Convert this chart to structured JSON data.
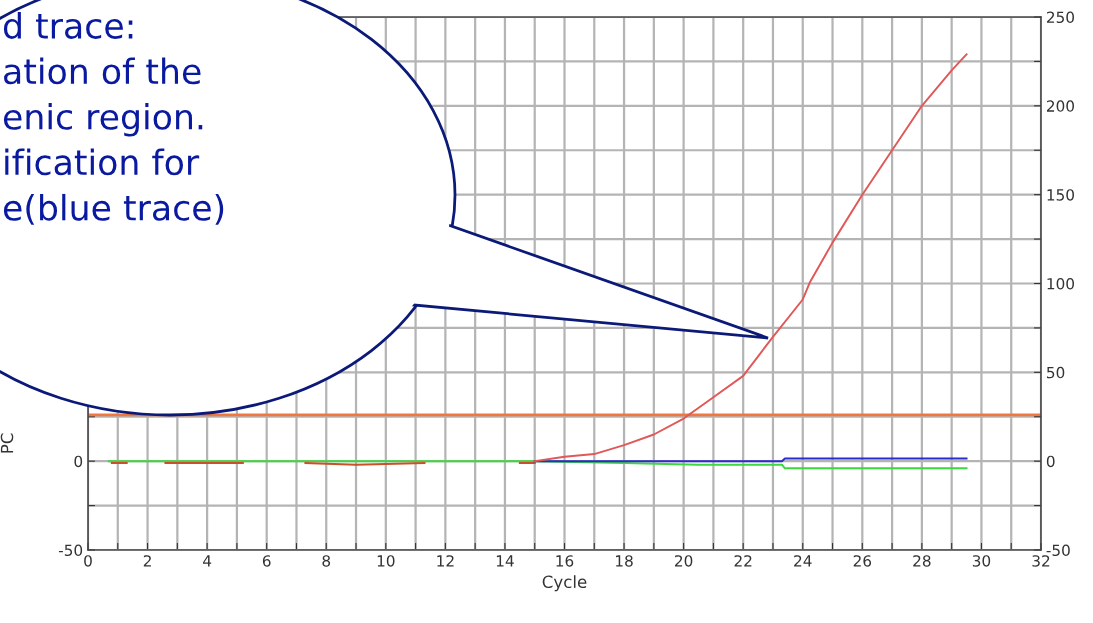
{
  "chart_data": {
    "type": "line",
    "xlabel": "Cycle",
    "ylabel": "PC",
    "xlim": [
      0,
      32
    ],
    "xticks": [
      0,
      {
        "value": 1,
        "label": null
      },
      2,
      {
        "value": 3,
        "label": null
      },
      4,
      {
        "value": 5,
        "label": null
      },
      6,
      {
        "value": 7,
        "label": null
      },
      8,
      {
        "value": 9,
        "label": null
      },
      10,
      {
        "value": 11,
        "label": null
      },
      12,
      {
        "value": 13,
        "label": null
      },
      14,
      {
        "value": 15,
        "label": null
      },
      16,
      {
        "value": 17,
        "label": null
      },
      18,
      {
        "value": 19,
        "label": null
      },
      20,
      {
        "value": 21,
        "label": null
      },
      22,
      {
        "value": 23,
        "label": null
      },
      24,
      {
        "value": 25,
        "label": null
      },
      26,
      {
        "value": 27,
        "label": null
      },
      28,
      {
        "value": 29,
        "label": null
      },
      30,
      {
        "value": 31,
        "label": null
      },
      32
    ],
    "ylim": [
      -50,
      250
    ],
    "yticks": [
      -50,
      {
        "value": -25,
        "label": null
      },
      0,
      {
        "value": 25,
        "label": null
      },
      {
        "value": 50,
        "label": null
      },
      {
        "value": 75,
        "label": null
      },
      {
        "value": 100,
        "label": null
      },
      {
        "value": 125,
        "label": null
      },
      {
        "value": 150,
        "label": null
      },
      {
        "value": 175,
        "label": null
      },
      {
        "value": 200,
        "label": null
      },
      {
        "value": 225,
        "label": null
      },
      {
        "value": 250,
        "label": null
      }
    ],
    "y2lim": [
      -50,
      250
    ],
    "y2ticks": [
      -50,
      {
        "value": -25,
        "label": null
      },
      0,
      {
        "value": 25,
        "label": null
      },
      50,
      {
        "value": 75,
        "label": null
      },
      100,
      {
        "value": 125,
        "label": null
      },
      150,
      {
        "value": 175,
        "label": null
      },
      200,
      {
        "value": 225,
        "label": null
      },
      250
    ],
    "grid": true,
    "series": [
      {
        "color": "#3dd83d",
        "x": [
          0.7,
          15,
          18,
          20.5,
          23.3,
          23.4,
          29.5
        ],
        "values": [
          0,
          0,
          -1,
          -2,
          -2,
          -4,
          -4
        ]
      },
      {
        "color": "#c8502a",
        "x": [
          0.8,
          1.3,
          1.35,
          2.6,
          5.2,
          5.3,
          7.3,
          9,
          11.3,
          11.4,
          14.5,
          15
        ],
        "values": [
          -1,
          -1,
          null,
          -1,
          -1,
          null,
          -1,
          -2,
          -1,
          null,
          -1,
          -1
        ]
      },
      {
        "color": "#2a2ad0",
        "x": [
          15,
          23.3,
          23.4,
          29.5
        ],
        "values": [
          0,
          0,
          1.5,
          1.5
        ]
      },
      {
        "color": "#e05858",
        "x": [
          15,
          16,
          17,
          18,
          19,
          20,
          21,
          22,
          23,
          24,
          24.25,
          25,
          26,
          27,
          28,
          29,
          29.5
        ],
        "values": [
          0,
          2.5,
          4,
          9,
          15,
          24,
          36,
          48,
          70,
          91,
          101,
          123,
          150,
          175,
          200,
          220,
          229
        ]
      }
    ],
    "ref_lines": [
      {
        "axis": "y",
        "value": 26,
        "color": "#f07840"
      }
    ],
    "annotations": [
      "d trace:\nation of the\nenic region.\nification for\ne(blue trace)"
    ]
  }
}
